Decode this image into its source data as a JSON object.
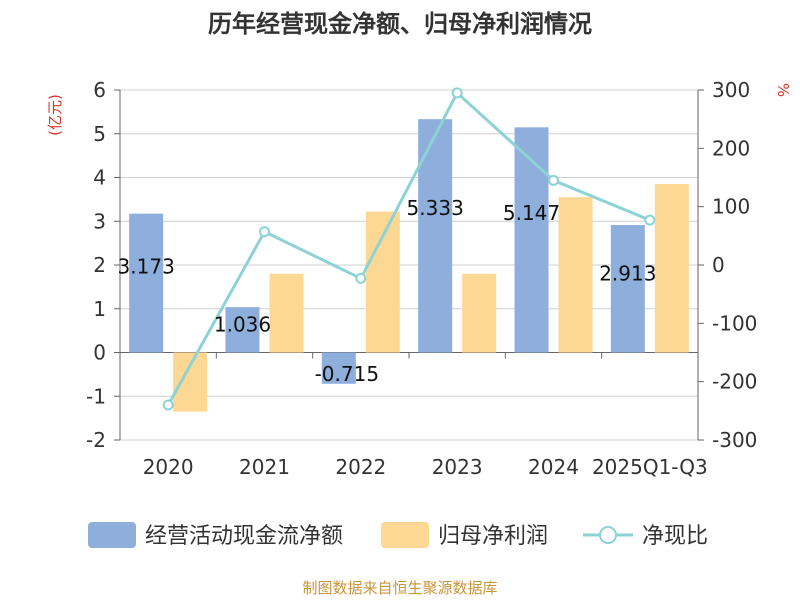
{
  "chart_data": {
    "type": "bar",
    "title": "历年经营现金净额、归母净利润情况",
    "categories": [
      "2020",
      "2021",
      "2022",
      "2023",
      "2024",
      "2025Q1-Q3"
    ],
    "series": [
      {
        "name": "经营活动现金流净额",
        "type": "bar",
        "axis": "left",
        "color": "#8eaedb",
        "values": [
          3.173,
          1.036,
          -0.715,
          5.333,
          5.147,
          2.913
        ],
        "value_labels": [
          "3.173",
          "1.036",
          "-0.715",
          "5.333",
          "5.147",
          "2.913"
        ]
      },
      {
        "name": "归母净利润",
        "type": "bar",
        "axis": "left",
        "color": "#fdd794",
        "values": [
          -1.35,
          1.8,
          3.22,
          1.8,
          3.55,
          3.85
        ]
      },
      {
        "name": "净现比",
        "type": "line",
        "axis": "right",
        "color": "#8dd3d6",
        "values": [
          -240,
          57,
          -23,
          295,
          145,
          77
        ]
      }
    ],
    "y_left": {
      "label": "(亿元)",
      "min": -2,
      "max": 6,
      "ticks": [
        "-2",
        "-1",
        "0",
        "1",
        "2",
        "3",
        "4",
        "5",
        "6"
      ]
    },
    "y_right": {
      "label": "%",
      "min": -300,
      "max": 300,
      "ticks": [
        "-300",
        "-200",
        "-100",
        "0",
        "100",
        "200",
        "300"
      ]
    },
    "grid": true,
    "legend_position": "bottom"
  },
  "footer": {
    "source": "制图数据来自恒生聚源数据库"
  }
}
